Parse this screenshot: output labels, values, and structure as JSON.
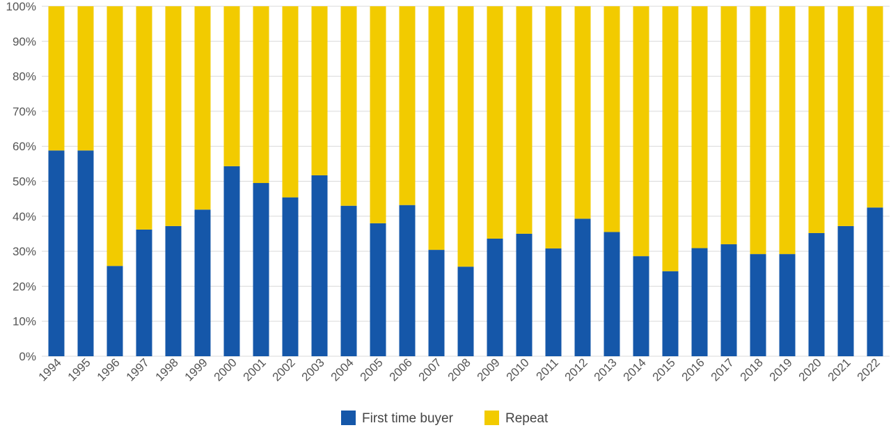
{
  "chart_data": {
    "type": "bar",
    "stacked": true,
    "categories": [
      "1994",
      "1995",
      "1996",
      "1997",
      "1998",
      "1999",
      "2000",
      "2001",
      "2002",
      "2003",
      "2004",
      "2005",
      "2006",
      "2007",
      "2008",
      "2009",
      "2010",
      "2011",
      "2012",
      "2013",
      "2014",
      "2015",
      "2016",
      "2017",
      "2018",
      "2019",
      "2020",
      "2021",
      "2022"
    ],
    "series": [
      {
        "name": "First time buyer",
        "color": "#1557a9",
        "values": [
          58.8,
          58.8,
          25.8,
          36.2,
          37.2,
          41.9,
          54.3,
          49.5,
          45.4,
          51.7,
          43.0,
          38.0,
          43.2,
          30.4,
          25.6,
          33.6,
          35.0,
          30.8,
          39.3,
          35.5,
          28.6,
          24.3,
          30.9,
          32.0,
          29.2,
          29.2,
          35.2,
          37.2,
          42.5
        ]
      },
      {
        "name": "Repeat",
        "color": "#f2cb00",
        "values": [
          41.2,
          41.2,
          74.2,
          63.8,
          62.8,
          58.1,
          45.7,
          50.5,
          54.6,
          48.3,
          57.0,
          62.0,
          56.8,
          69.6,
          74.4,
          66.4,
          65.0,
          69.2,
          60.7,
          64.5,
          71.4,
          75.7,
          69.1,
          68.0,
          70.8,
          70.8,
          64.8,
          62.8,
          57.5
        ]
      }
    ],
    "yticks": [
      "0%",
      "10%",
      "20%",
      "30%",
      "40%",
      "50%",
      "60%",
      "70%",
      "80%",
      "90%",
      "100%"
    ],
    "ylim": [
      0,
      100
    ],
    "grid": true,
    "legend_position": "bottom-center",
    "title": "",
    "xlabel": "",
    "ylabel": ""
  }
}
